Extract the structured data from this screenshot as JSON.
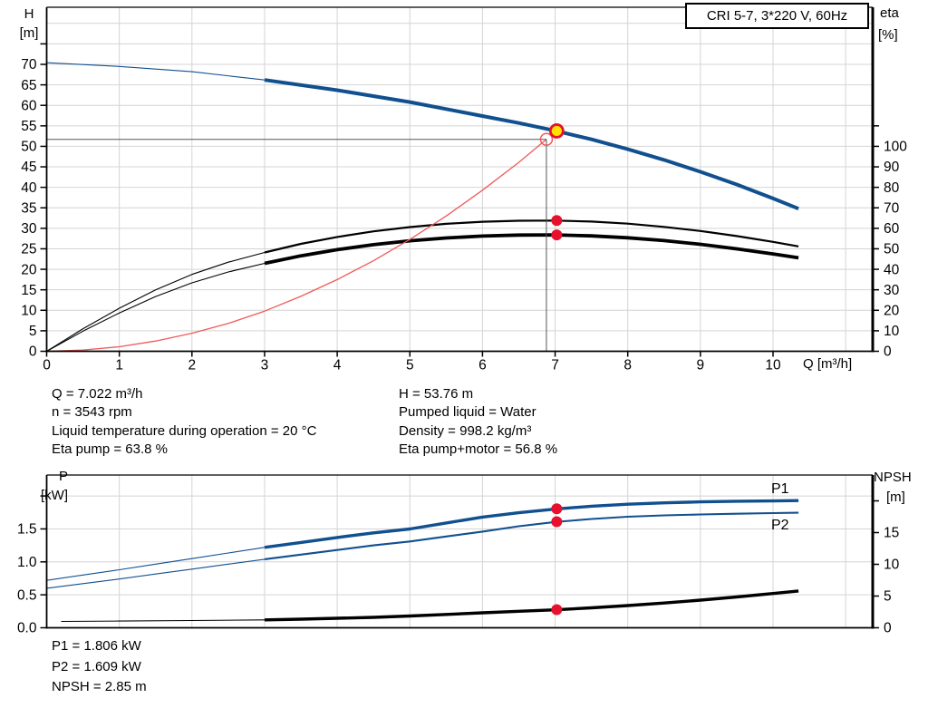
{
  "title_box": "CRI 5-7, 3*220 V, 60Hz",
  "labels": {
    "h": "H",
    "h_unit": "[m]",
    "eta": "eta",
    "eta_unit": "[%]",
    "q_axis": "Q [m³/h]",
    "p": "P",
    "p_unit": "[kW]",
    "npsh": "NPSH",
    "npsh_unit": "[m]",
    "p1": "P1",
    "p2": "P2"
  },
  "info_top_left": [
    "Q = 7.022 m³/h",
    "n = 3543 rpm",
    "Liquid temperature during operation = 20 °C",
    "Eta pump = 63.8 %"
  ],
  "info_top_right": [
    "H = 53.76 m",
    "Pumped liquid = Water",
    "Density = 998.2 kg/m³",
    "Eta pump+motor = 56.8 %"
  ],
  "info_bottom": [
    "P1 = 1.806 kW",
    "P2 = 1.609 kW",
    "NPSH = 2.85 m"
  ],
  "colors": {
    "blue": "#11508F",
    "black": "#000000",
    "red_dot": "#E8112D",
    "yellow": "#FFE000",
    "system_red": "#EF5A5A",
    "grid": "#D4D4D4",
    "crosshair": "#555555"
  },
  "chart_data": [
    {
      "type": "line",
      "title": "CRI 5-7, 3*220 V, 60Hz",
      "x_axis": {
        "label": "Q [m³/h]",
        "ticks": [
          0,
          1,
          2,
          3,
          4,
          5,
          6,
          7,
          8,
          9,
          10
        ],
        "grid": [
          1,
          2,
          3,
          4,
          5,
          6,
          7,
          8,
          9,
          10,
          11
        ],
        "range": [
          0,
          11.37
        ]
      },
      "left_axis": {
        "label": "H [m]",
        "ticks": [
          0,
          5,
          10,
          15,
          20,
          25,
          30,
          35,
          40,
          45,
          50,
          55,
          60,
          65,
          70
        ],
        "unlabeled": [
          75
        ],
        "grid": [
          5,
          10,
          15,
          20,
          25,
          30,
          35,
          40,
          45,
          50,
          55,
          60,
          65,
          70,
          75,
          80
        ],
        "range": [
          0,
          83.9
        ]
      },
      "right_axis": {
        "label": "eta [%]",
        "ticks": [
          0,
          10,
          20,
          30,
          40,
          50,
          60,
          70,
          80,
          90,
          100
        ],
        "unlabeled": [
          110
        ],
        "range": [
          0,
          167.8
        ]
      },
      "series": [
        {
          "id": "H",
          "name": "Head curve",
          "axis": "left",
          "color": "blue",
          "thick_from": 3,
          "points": [
            [
              0,
              70.4
            ],
            [
              1,
              69.5
            ],
            [
              2,
              68.2
            ],
            [
              3,
              66.2
            ],
            [
              4,
              63.7
            ],
            [
              5,
              60.8
            ],
            [
              6,
              57.4
            ],
            [
              6.5,
              55.7
            ],
            [
              7,
              53.8
            ],
            [
              7.5,
              51.7
            ],
            [
              8,
              49.3
            ],
            [
              8.5,
              46.7
            ],
            [
              9,
              43.8
            ],
            [
              9.5,
              40.7
            ],
            [
              10,
              37.3
            ],
            [
              10.35,
              34.8
            ]
          ]
        },
        {
          "id": "eta-pump",
          "name": "Eta pump",
          "axis": "right",
          "color": "black",
          "thick_from": 3,
          "points": [
            [
              0,
              0
            ],
            [
              0.5,
              11
            ],
            [
              1,
              21
            ],
            [
              1.5,
              30
            ],
            [
              2,
              37.5
            ],
            [
              2.5,
              43.5
            ],
            [
              3,
              48.2
            ],
            [
              3.5,
              52.4
            ],
            [
              4,
              55.8
            ],
            [
              4.5,
              58.5
            ],
            [
              5,
              60.6
            ],
            [
              5.5,
              62.2
            ],
            [
              6,
              63.2
            ],
            [
              6.5,
              63.7
            ],
            [
              7,
              63.8
            ],
            [
              7.5,
              63.3
            ],
            [
              8,
              62.3
            ],
            [
              8.5,
              60.7
            ],
            [
              9,
              58.7
            ],
            [
              9.5,
              56.2
            ],
            [
              10,
              53.4
            ],
            [
              10.35,
              51.2
            ]
          ]
        },
        {
          "id": "eta-pump-motor",
          "name": "Eta pump+motor",
          "axis": "right",
          "color": "black",
          "thick_from": 3,
          "points": [
            [
              0,
              0
            ],
            [
              0.5,
              9.8
            ],
            [
              1,
              18.7
            ],
            [
              1.5,
              26.7
            ],
            [
              2,
              33.4
            ],
            [
              2.5,
              38.7
            ],
            [
              3,
              42.9
            ],
            [
              3.5,
              46.6
            ],
            [
              4,
              49.6
            ],
            [
              4.5,
              52
            ],
            [
              5,
              53.9
            ],
            [
              5.5,
              55.3
            ],
            [
              6,
              56.2
            ],
            [
              6.5,
              56.7
            ],
            [
              7,
              56.8
            ],
            [
              7.5,
              56.3
            ],
            [
              8,
              55.4
            ],
            [
              8.5,
              54
            ],
            [
              9,
              52.2
            ],
            [
              9.5,
              50
            ],
            [
              10,
              47.5
            ],
            [
              10.35,
              45.6
            ]
          ]
        },
        {
          "id": "system-curve",
          "name": "System curve",
          "axis": "left",
          "color": "system_red",
          "points": [
            [
              0,
              0
            ],
            [
              0.5,
              0.3
            ],
            [
              1,
              1.1
            ],
            [
              1.5,
              2.5
            ],
            [
              2,
              4.4
            ],
            [
              2.5,
              6.8
            ],
            [
              3,
              9.8
            ],
            [
              3.5,
              13.4
            ],
            [
              4,
              17.5
            ],
            [
              4.5,
              22.1
            ],
            [
              5,
              27.3
            ],
            [
              5.5,
              33
            ],
            [
              6,
              39.3
            ],
            [
              6.5,
              46.1
            ],
            [
              6.88,
              51.7
            ]
          ]
        }
      ],
      "crosshair": {
        "q": 6.88,
        "value": 51.7,
        "axis": "left"
      },
      "markers": [
        {
          "style": "duty",
          "q": 7.022,
          "value": 53.76,
          "axis": "left"
        },
        {
          "style": "dot",
          "q": 7.022,
          "value": 63.8,
          "axis": "right"
        },
        {
          "style": "dot",
          "q": 7.022,
          "value": 56.8,
          "axis": "right"
        }
      ]
    },
    {
      "type": "line",
      "x_axis": {
        "ticks": [],
        "grid": [
          1,
          2,
          3,
          4,
          5,
          6,
          7,
          8,
          9,
          10,
          11
        ],
        "range": [
          0,
          11.37
        ]
      },
      "left_axis": {
        "label": "P [kW]",
        "ticks": [
          0,
          0.5,
          1,
          1.5
        ],
        "tick_labels": [
          "0.0",
          "0.5",
          "1.0",
          "1.5"
        ],
        "unlabeled": [
          2
        ],
        "grid": [
          0.5,
          1,
          1.5,
          2
        ],
        "range": [
          0,
          2.32
        ]
      },
      "right_axis": {
        "label": "NPSH [m]",
        "ticks": [
          0,
          5,
          10,
          15
        ],
        "unlabeled": [
          20
        ],
        "range": [
          0,
          24
        ]
      },
      "series": [
        {
          "id": "P1",
          "name": "P1",
          "axis": "left",
          "color": "blue",
          "thick_from": 3,
          "points": [
            [
              0,
              0.72
            ],
            [
              0.5,
              0.8
            ],
            [
              1,
              0.88
            ],
            [
              1.5,
              0.965
            ],
            [
              2,
              1.05
            ],
            [
              2.5,
              1.135
            ],
            [
              3,
              1.22
            ],
            [
              3.5,
              1.295
            ],
            [
              4,
              1.37
            ],
            [
              4.5,
              1.44
            ],
            [
              5,
              1.5
            ],
            [
              5.5,
              1.59
            ],
            [
              6,
              1.68
            ],
            [
              6.5,
              1.745
            ],
            [
              7,
              1.8
            ],
            [
              7.5,
              1.845
            ],
            [
              8,
              1.875
            ],
            [
              8.5,
              1.895
            ],
            [
              9,
              1.91
            ],
            [
              9.5,
              1.92
            ],
            [
              10,
              1.925
            ],
            [
              10.35,
              1.93
            ]
          ]
        },
        {
          "id": "P2",
          "name": "P2",
          "axis": "left",
          "color": "blue",
          "thick_from": 3,
          "points": [
            [
              0,
              0.6
            ],
            [
              0.5,
              0.67
            ],
            [
              1,
              0.74
            ],
            [
              1.5,
              0.815
            ],
            [
              2,
              0.89
            ],
            [
              2.5,
              0.965
            ],
            [
              3,
              1.04
            ],
            [
              3.5,
              1.11
            ],
            [
              4,
              1.18
            ],
            [
              4.5,
              1.25
            ],
            [
              5,
              1.31
            ],
            [
              5.5,
              1.385
            ],
            [
              6,
              1.46
            ],
            [
              6.5,
              1.54
            ],
            [
              7,
              1.605
            ],
            [
              7.5,
              1.65
            ],
            [
              8,
              1.685
            ],
            [
              8.5,
              1.705
            ],
            [
              9,
              1.72
            ],
            [
              9.5,
              1.73
            ],
            [
              10,
              1.74
            ],
            [
              10.35,
              1.745
            ]
          ]
        },
        {
          "id": "NPSH",
          "name": "NPSH",
          "axis": "right",
          "color": "black",
          "thick_from": 3,
          "points": [
            [
              0.2,
              1
            ],
            [
              1,
              1.05
            ],
            [
              2,
              1.15
            ],
            [
              3,
              1.25
            ],
            [
              3.5,
              1.35
            ],
            [
              4,
              1.5
            ],
            [
              4.5,
              1.65
            ],
            [
              5,
              1.85
            ],
            [
              5.5,
              2.1
            ],
            [
              6,
              2.35
            ],
            [
              6.5,
              2.6
            ],
            [
              7,
              2.83
            ],
            [
              7.5,
              3.15
            ],
            [
              8,
              3.5
            ],
            [
              8.5,
              3.9
            ],
            [
              9,
              4.35
            ],
            [
              9.5,
              4.85
            ],
            [
              10,
              5.4
            ],
            [
              10.35,
              5.8
            ]
          ]
        }
      ],
      "markers": [
        {
          "style": "dot",
          "q": 7.022,
          "value": 1.806,
          "axis": "left"
        },
        {
          "style": "dot",
          "q": 7.022,
          "value": 1.609,
          "axis": "left"
        },
        {
          "style": "dot",
          "q": 7.022,
          "value": 2.85,
          "axis": "right"
        }
      ]
    }
  ]
}
